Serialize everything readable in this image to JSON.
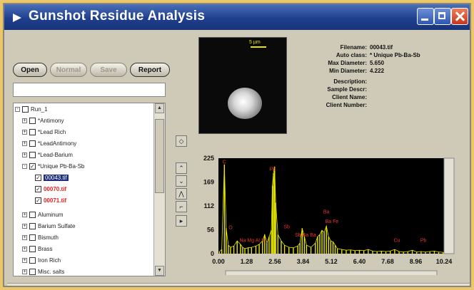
{
  "window": {
    "title": "Gunshot Residue Analysis"
  },
  "toolbar": {
    "open": "Open",
    "normal": "Normal",
    "save": "Save",
    "report": "Report"
  },
  "tree": {
    "root": "Run_1",
    "items": [
      {
        "label": "*Antimony"
      },
      {
        "label": "*Lead Rich"
      },
      {
        "label": "*LeadAntimony"
      },
      {
        "label": "*Lead-Barium"
      },
      {
        "label": "*Unique Pb-Ba-Sb",
        "checked": true
      },
      {
        "label": "00043.tif",
        "checked": true
      },
      {
        "label": "00070.tif",
        "checked": true
      },
      {
        "label": "00071.tif",
        "checked": true
      },
      {
        "label": "Aluminum"
      },
      {
        "label": "Barium Sulfate"
      },
      {
        "label": "Bismuth"
      },
      {
        "label": "Brass"
      },
      {
        "label": "Iron Rich"
      },
      {
        "label": "Misc. salts"
      }
    ]
  },
  "image": {
    "scale_label": "5 µm"
  },
  "info": {
    "filename_label": "Filename:",
    "filename_value": "00043.tif",
    "autoclass_label": "Auto class:",
    "autoclass_value": "* Unique Pb-Ba-Sb",
    "maxdiam_label": "Max Diameter:",
    "maxdiam_value": "5.650",
    "mindiam_label": "Min Diameter:",
    "mindiam_value": "4.222",
    "desc_label": "Description:",
    "sample_label": "Sample Descr:",
    "client_label": "Client Name:",
    "clientnum_label": "Client Number:"
  },
  "tools": {
    "icons": [
      "eraser-icon",
      "arrow-up-icon",
      "arrow-down-icon",
      "peak-icon",
      "marker-icon",
      "cursor-icon"
    ]
  },
  "colors": {
    "spectrum": "#e6e600",
    "labels": "#e33333",
    "title_bar": "#1f3f8e"
  },
  "chart_data": {
    "type": "line",
    "x_tick_labels": [
      "0.00",
      "1.28",
      "2.56",
      "3.84",
      "5.12",
      "6.40",
      "7.68",
      "8.96",
      "10.24"
    ],
    "y_tick_labels": [
      "225",
      "169",
      "112",
      "56",
      "0"
    ],
    "xlim": [
      0,
      10.24
    ],
    "ylim": [
      0,
      225
    ],
    "series": [
      {
        "x": [
          0.05,
          0.15,
          0.27,
          0.35,
          0.45,
          0.55,
          0.7,
          0.85,
          1.0,
          1.1,
          1.2,
          1.35,
          1.5,
          1.7,
          1.85,
          2.0,
          2.1,
          2.2,
          2.3,
          2.4,
          2.45,
          2.5,
          2.55,
          2.6,
          2.7,
          2.85,
          3.0,
          3.2,
          3.4,
          3.6,
          3.7,
          3.8,
          3.9,
          4.0,
          4.2,
          4.4,
          4.5,
          4.6,
          4.7,
          4.8,
          4.9,
          5.0,
          5.1,
          5.2,
          5.3,
          5.4,
          5.6,
          5.8,
          6.0,
          6.2,
          6.4,
          6.6,
          6.8,
          7.0,
          7.2,
          7.4,
          7.6,
          7.8,
          8.0,
          8.2,
          8.4,
          8.6,
          8.8,
          9.0,
          9.2,
          9.4,
          9.6,
          9.8,
          10.0,
          10.2
        ],
        "y": [
          5,
          10,
          210,
          60,
          20,
          15,
          18,
          30,
          22,
          15,
          12,
          14,
          15,
          18,
          22,
          30,
          45,
          25,
          40,
          55,
          160,
          190,
          205,
          120,
          45,
          30,
          20,
          15,
          14,
          18,
          25,
          60,
          40,
          20,
          15,
          25,
          40,
          45,
          55,
          50,
          65,
          40,
          30,
          28,
          20,
          12,
          10,
          8,
          9,
          7,
          8,
          7,
          10,
          6,
          5,
          6,
          5,
          6,
          10,
          5,
          4,
          5,
          8,
          4,
          5,
          4,
          5,
          6,
          4,
          3
        ]
      }
    ],
    "annotations": [
      {
        "text": "C",
        "x": 0.27,
        "y": 212
      },
      {
        "text": "Pb",
        "x": 2.45,
        "y": 196
      },
      {
        "text": "O",
        "x": 0.55,
        "y": 58
      },
      {
        "text": "Na Mg Al Si",
        "x": 1.55,
        "y": 28
      },
      {
        "text": "Sb",
        "x": 3.1,
        "y": 60
      },
      {
        "text": "Sb Ba Ba",
        "x": 3.95,
        "y": 40
      },
      {
        "text": "Ba",
        "x": 4.9,
        "y": 95
      },
      {
        "text": "Ba Fe",
        "x": 5.15,
        "y": 72
      },
      {
        "text": "Cu",
        "x": 8.1,
        "y": 28
      },
      {
        "text": "Pb",
        "x": 9.3,
        "y": 28
      }
    ]
  }
}
